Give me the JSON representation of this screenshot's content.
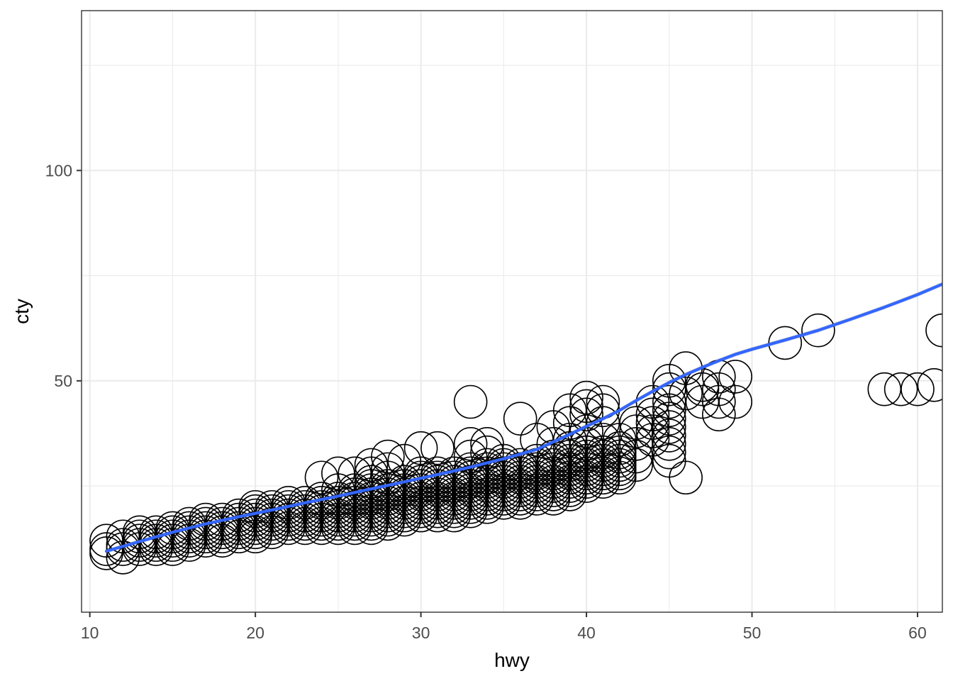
{
  "chart_data": {
    "type": "scatter",
    "title": "",
    "xlabel": "hwy",
    "ylabel": "cty",
    "xlim": [
      9.5,
      61.5
    ],
    "ylim": [
      -5,
      138
    ],
    "x_ticks": [
      10,
      20,
      30,
      40,
      50,
      60
    ],
    "x_tick_labels": [
      "10",
      "20",
      "30",
      "40",
      "50",
      "60"
    ],
    "y_ticks": [
      50,
      100
    ],
    "y_tick_labels": [
      "50",
      "100"
    ],
    "x_minor_ticks": [
      15,
      25,
      35,
      45,
      55
    ],
    "y_minor_ticks": [
      25,
      75,
      125
    ],
    "grid": true,
    "legend": "none",
    "colors": {
      "points": "#000000",
      "smooth_line": "#3366ff",
      "smooth_band": "#999999",
      "grid": "#ebebeb",
      "panel_border": "#333333"
    },
    "points": [
      [
        11,
        9
      ],
      [
        11,
        10
      ],
      [
        11,
        12
      ],
      [
        12,
        8
      ],
      [
        12,
        10
      ],
      [
        12,
        11
      ],
      [
        12,
        13
      ],
      [
        13,
        10
      ],
      [
        13,
        11
      ],
      [
        13,
        12
      ],
      [
        13,
        13
      ],
      [
        13,
        14
      ],
      [
        14,
        10
      ],
      [
        14,
        11
      ],
      [
        14,
        12
      ],
      [
        14,
        13
      ],
      [
        14,
        14
      ],
      [
        15,
        10
      ],
      [
        15,
        11
      ],
      [
        15,
        12
      ],
      [
        15,
        13
      ],
      [
        15,
        14
      ],
      [
        15,
        15
      ],
      [
        16,
        11
      ],
      [
        16,
        12
      ],
      [
        16,
        13
      ],
      [
        16,
        14
      ],
      [
        16,
        15
      ],
      [
        16,
        16
      ],
      [
        17,
        12
      ],
      [
        17,
        13
      ],
      [
        17,
        14
      ],
      [
        17,
        15
      ],
      [
        17,
        16
      ],
      [
        17,
        17
      ],
      [
        18,
        12
      ],
      [
        18,
        13
      ],
      [
        18,
        14
      ],
      [
        18,
        15
      ],
      [
        18,
        16
      ],
      [
        18,
        17
      ],
      [
        19,
        13
      ],
      [
        19,
        14
      ],
      [
        19,
        15
      ],
      [
        19,
        16
      ],
      [
        19,
        17
      ],
      [
        19,
        18
      ],
      [
        20,
        13
      ],
      [
        20,
        14
      ],
      [
        20,
        15
      ],
      [
        20,
        16
      ],
      [
        20,
        17
      ],
      [
        20,
        18
      ],
      [
        20,
        19
      ],
      [
        20,
        20
      ],
      [
        21,
        14
      ],
      [
        21,
        15
      ],
      [
        21,
        16
      ],
      [
        21,
        17
      ],
      [
        21,
        18
      ],
      [
        21,
        19
      ],
      [
        21,
        20
      ],
      [
        22,
        15
      ],
      [
        22,
        16
      ],
      [
        22,
        17
      ],
      [
        22,
        18
      ],
      [
        22,
        19
      ],
      [
        22,
        20
      ],
      [
        22,
        21
      ],
      [
        23,
        15
      ],
      [
        23,
        16
      ],
      [
        23,
        17
      ],
      [
        23,
        18
      ],
      [
        23,
        19
      ],
      [
        23,
        20
      ],
      [
        23,
        21
      ],
      [
        24,
        15
      ],
      [
        24,
        16
      ],
      [
        24,
        17
      ],
      [
        24,
        18
      ],
      [
        24,
        19
      ],
      [
        24,
        20
      ],
      [
        24,
        21
      ],
      [
        24,
        22
      ],
      [
        24,
        27
      ],
      [
        25,
        15
      ],
      [
        25,
        16
      ],
      [
        25,
        17
      ],
      [
        25,
        18
      ],
      [
        25,
        19
      ],
      [
        25,
        20
      ],
      [
        25,
        21
      ],
      [
        25,
        22
      ],
      [
        25,
        24
      ],
      [
        25,
        28
      ],
      [
        26,
        15
      ],
      [
        26,
        16
      ],
      [
        26,
        17
      ],
      [
        26,
        18
      ],
      [
        26,
        19
      ],
      [
        26,
        20
      ],
      [
        26,
        21
      ],
      [
        26,
        22
      ],
      [
        26,
        23
      ],
      [
        26,
        24
      ],
      [
        26,
        28
      ],
      [
        27,
        15
      ],
      [
        27,
        16
      ],
      [
        27,
        17
      ],
      [
        27,
        18
      ],
      [
        27,
        19
      ],
      [
        27,
        20
      ],
      [
        27,
        21
      ],
      [
        27,
        22
      ],
      [
        27,
        23
      ],
      [
        27,
        24
      ],
      [
        27,
        25
      ],
      [
        27,
        26
      ],
      [
        27,
        28
      ],
      [
        27,
        30
      ],
      [
        28,
        16
      ],
      [
        28,
        17
      ],
      [
        28,
        18
      ],
      [
        28,
        19
      ],
      [
        28,
        20
      ],
      [
        28,
        21
      ],
      [
        28,
        22
      ],
      [
        28,
        23
      ],
      [
        28,
        24
      ],
      [
        28,
        25
      ],
      [
        28,
        27
      ],
      [
        28,
        29
      ],
      [
        28,
        32
      ],
      [
        29,
        17
      ],
      [
        29,
        18
      ],
      [
        29,
        19
      ],
      [
        29,
        20
      ],
      [
        29,
        21
      ],
      [
        29,
        22
      ],
      [
        29,
        23
      ],
      [
        29,
        24
      ],
      [
        29,
        25
      ],
      [
        29,
        26
      ],
      [
        29,
        31
      ],
      [
        30,
        18
      ],
      [
        30,
        19
      ],
      [
        30,
        20
      ],
      [
        30,
        21
      ],
      [
        30,
        22
      ],
      [
        30,
        23
      ],
      [
        30,
        24
      ],
      [
        30,
        25
      ],
      [
        30,
        26
      ],
      [
        30,
        27
      ],
      [
        30,
        28
      ],
      [
        30,
        34
      ],
      [
        31,
        18
      ],
      [
        31,
        19
      ],
      [
        31,
        20
      ],
      [
        31,
        21
      ],
      [
        31,
        22
      ],
      [
        31,
        23
      ],
      [
        31,
        24
      ],
      [
        31,
        25
      ],
      [
        31,
        26
      ],
      [
        31,
        27
      ],
      [
        31,
        28
      ],
      [
        31,
        34
      ],
      [
        32,
        18
      ],
      [
        32,
        19
      ],
      [
        32,
        20
      ],
      [
        32,
        21
      ],
      [
        32,
        22
      ],
      [
        32,
        23
      ],
      [
        32,
        24
      ],
      [
        32,
        25
      ],
      [
        32,
        26
      ],
      [
        32,
        27
      ],
      [
        32,
        28
      ],
      [
        33,
        19
      ],
      [
        33,
        20
      ],
      [
        33,
        21
      ],
      [
        33,
        22
      ],
      [
        33,
        23
      ],
      [
        33,
        24
      ],
      [
        33,
        25
      ],
      [
        33,
        26
      ],
      [
        33,
        27
      ],
      [
        33,
        28
      ],
      [
        33,
        29
      ],
      [
        33,
        32
      ],
      [
        33,
        35
      ],
      [
        33,
        45
      ],
      [
        34,
        20
      ],
      [
        34,
        21
      ],
      [
        34,
        22
      ],
      [
        34,
        23
      ],
      [
        34,
        24
      ],
      [
        34,
        25
      ],
      [
        34,
        26
      ],
      [
        34,
        27
      ],
      [
        34,
        28
      ],
      [
        34,
        29
      ],
      [
        34,
        30
      ],
      [
        34,
        33
      ],
      [
        34,
        35
      ],
      [
        35,
        21
      ],
      [
        35,
        22
      ],
      [
        35,
        23
      ],
      [
        35,
        24
      ],
      [
        35,
        25
      ],
      [
        35,
        26
      ],
      [
        35,
        27
      ],
      [
        35,
        28
      ],
      [
        35,
        29
      ],
      [
        35,
        30
      ],
      [
        35,
        31
      ],
      [
        36,
        21
      ],
      [
        36,
        22
      ],
      [
        36,
        23
      ],
      [
        36,
        24
      ],
      [
        36,
        25
      ],
      [
        36,
        26
      ],
      [
        36,
        27
      ],
      [
        36,
        28
      ],
      [
        36,
        29
      ],
      [
        36,
        30
      ],
      [
        36,
        41
      ],
      [
        37,
        22
      ],
      [
        37,
        23
      ],
      [
        37,
        24
      ],
      [
        37,
        25
      ],
      [
        37,
        26
      ],
      [
        37,
        27
      ],
      [
        37,
        28
      ],
      [
        37,
        29
      ],
      [
        37,
        30
      ],
      [
        37,
        31
      ],
      [
        37,
        36
      ],
      [
        38,
        22
      ],
      [
        38,
        23
      ],
      [
        38,
        24
      ],
      [
        38,
        25
      ],
      [
        38,
        26
      ],
      [
        38,
        27
      ],
      [
        38,
        28
      ],
      [
        38,
        29
      ],
      [
        38,
        30
      ],
      [
        38,
        31
      ],
      [
        38,
        32
      ],
      [
        38,
        35
      ],
      [
        38,
        39
      ],
      [
        39,
        23
      ],
      [
        39,
        24
      ],
      [
        39,
        25
      ],
      [
        39,
        26
      ],
      [
        39,
        27
      ],
      [
        39,
        28
      ],
      [
        39,
        29
      ],
      [
        39,
        30
      ],
      [
        39,
        31
      ],
      [
        39,
        32
      ],
      [
        39,
        34
      ],
      [
        39,
        36
      ],
      [
        39,
        40
      ],
      [
        39,
        43
      ],
      [
        40,
        25
      ],
      [
        40,
        26
      ],
      [
        40,
        27
      ],
      [
        40,
        28
      ],
      [
        40,
        29
      ],
      [
        40,
        30
      ],
      [
        40,
        31
      ],
      [
        40,
        32
      ],
      [
        40,
        33
      ],
      [
        40,
        35
      ],
      [
        40,
        38
      ],
      [
        40,
        42
      ],
      [
        40,
        44
      ],
      [
        40,
        46
      ],
      [
        41,
        26
      ],
      [
        41,
        27
      ],
      [
        41,
        28
      ],
      [
        41,
        29
      ],
      [
        41,
        30
      ],
      [
        41,
        31
      ],
      [
        41,
        32
      ],
      [
        41,
        33
      ],
      [
        41,
        36
      ],
      [
        41,
        40
      ],
      [
        41,
        43
      ],
      [
        41,
        45
      ],
      [
        42,
        27
      ],
      [
        42,
        28
      ],
      [
        42,
        29
      ],
      [
        42,
        30
      ],
      [
        42,
        31
      ],
      [
        42,
        32
      ],
      [
        42,
        33
      ],
      [
        42,
        34
      ],
      [
        42,
        36
      ],
      [
        43,
        30
      ],
      [
        43,
        32
      ],
      [
        43,
        35
      ],
      [
        43,
        38
      ],
      [
        43,
        40
      ],
      [
        44,
        36
      ],
      [
        44,
        38
      ],
      [
        44,
        40
      ],
      [
        44,
        42
      ],
      [
        44,
        45
      ],
      [
        45,
        31
      ],
      [
        45,
        33
      ],
      [
        45,
        35
      ],
      [
        45,
        37
      ],
      [
        45,
        39
      ],
      [
        45,
        41
      ],
      [
        45,
        43
      ],
      [
        45,
        45
      ],
      [
        45,
        48
      ],
      [
        45,
        50
      ],
      [
        46,
        27
      ],
      [
        46,
        47
      ],
      [
        46,
        53
      ],
      [
        47,
        45
      ],
      [
        47,
        48
      ],
      [
        47,
        49
      ],
      [
        48,
        42
      ],
      [
        48,
        45
      ],
      [
        48,
        48
      ],
      [
        48,
        51
      ],
      [
        49,
        45
      ],
      [
        49,
        51
      ],
      [
        52,
        59
      ],
      [
        54,
        62
      ],
      [
        58,
        48
      ],
      [
        59,
        48
      ],
      [
        60,
        48
      ],
      [
        61,
        49
      ],
      [
        61.5,
        62
      ]
    ],
    "smooth": {
      "x": [
        11,
        13,
        15,
        17,
        19,
        21,
        23,
        25,
        27,
        29,
        31,
        33,
        35,
        37,
        38,
        39,
        40,
        41,
        42,
        43,
        44,
        45,
        46,
        47,
        48,
        49,
        50,
        52,
        54,
        56,
        58,
        60,
        61.5
      ],
      "y": [
        9.5,
        11.8,
        14.0,
        16.0,
        17.7,
        19.3,
        21.0,
        22.6,
        24.3,
        26.0,
        27.7,
        29.5,
        31.5,
        33.7,
        35.5,
        37.3,
        39.2,
        41.0,
        43.0,
        45.3,
        47.5,
        49.6,
        51.5,
        53.2,
        54.8,
        56.3,
        57.5,
        59.7,
        62.0,
        64.7,
        67.5,
        70.5,
        73.0
      ],
      "se_halfwidth": 0.5
    }
  }
}
